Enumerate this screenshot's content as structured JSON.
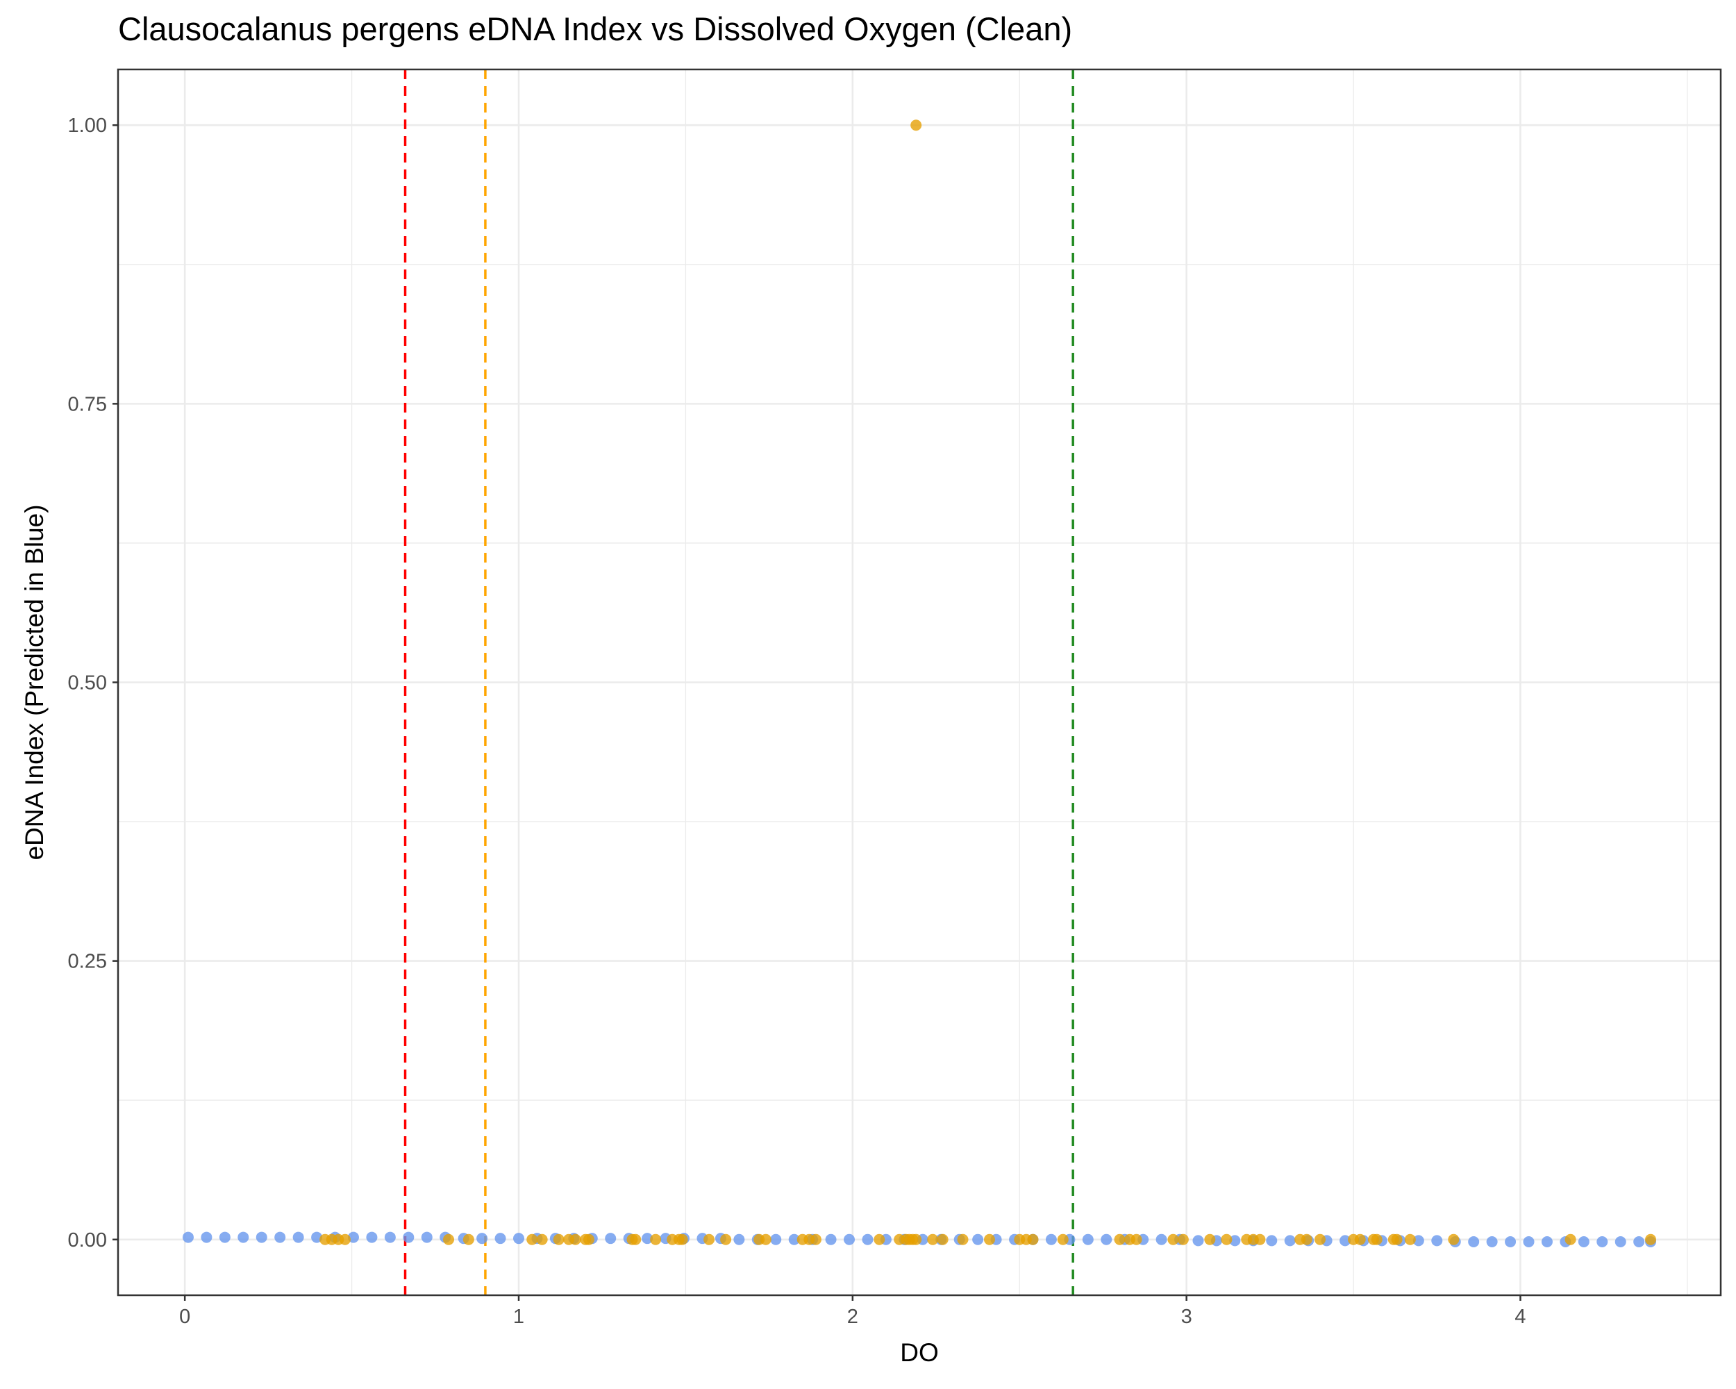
{
  "chart_data": {
    "type": "scatter",
    "title": "Clausocalanus pergens eDNA Index vs Dissolved Oxygen (Clean)",
    "xlabel": "DO",
    "ylabel": "eDNA Index (Predicted in Blue)",
    "xlim": [
      -0.2,
      4.6
    ],
    "ylim": [
      -0.05,
      1.05
    ],
    "x_ticks": [
      "0",
      "1",
      "2",
      "3",
      "4"
    ],
    "y_ticks": [
      "0.00",
      "0.25",
      "0.50",
      "0.75",
      "1.00"
    ],
    "grid": true,
    "legend": "none",
    "colors": {
      "predicted": "#6495ED",
      "observed": "#E69F00",
      "line_red": "#FF0000",
      "line_orange": "#FFA500",
      "line_green": "#228B22",
      "grid_major": "#EBEBEB",
      "panel_border": "#333333"
    },
    "vlines": [
      {
        "x": 0.66,
        "color": "#FF0000"
      },
      {
        "x": 0.9,
        "color": "#FFA500"
      },
      {
        "x": 2.66,
        "color": "#228B22"
      }
    ],
    "series": [
      {
        "color": "#6495ED",
        "x": [
          0.01,
          0.065,
          0.12,
          0.175,
          0.23,
          0.285,
          0.34,
          0.395,
          0.45,
          0.505,
          0.56,
          0.615,
          0.67,
          0.725,
          0.78,
          0.835,
          0.89,
          0.945,
          1.0,
          1.055,
          1.11,
          1.165,
          1.22,
          1.275,
          1.33,
          1.385,
          1.44,
          1.495,
          1.55,
          1.605,
          1.66,
          1.715,
          1.77,
          1.825,
          1.88,
          1.935,
          1.99,
          2.045,
          2.1,
          2.155,
          2.21,
          2.265,
          2.32,
          2.375,
          2.43,
          2.485,
          2.54,
          2.595,
          2.65,
          2.705,
          2.76,
          2.815,
          2.87,
          2.925,
          2.98,
          3.035,
          3.09,
          3.145,
          3.2,
          3.255,
          3.31,
          3.365,
          3.42,
          3.475,
          3.53,
          3.585,
          3.64,
          3.695,
          3.75,
          3.805,
          3.86,
          3.915,
          3.97,
          4.025,
          4.08,
          4.135,
          4.19,
          4.245,
          4.3,
          4.355,
          4.39
        ],
        "y": [
          0.002,
          0.002,
          0.002,
          0.002,
          0.002,
          0.002,
          0.002,
          0.002,
          0.002,
          0.002,
          0.002,
          0.002,
          0.002,
          0.002,
          0.002,
          0.001,
          0.001,
          0.001,
          0.001,
          0.001,
          0.001,
          0.001,
          0.001,
          0.001,
          0.001,
          0.001,
          0.001,
          0.001,
          0.001,
          0.001,
          0.0,
          0.0,
          0.0,
          0.0,
          0.0,
          0.0,
          0.0,
          0.0,
          0.0,
          0.0,
          0.0,
          0.0,
          0.0,
          0.0,
          0.0,
          0.0,
          0.0,
          0.0,
          0.0,
          0.0,
          0.0,
          0.0,
          0.0,
          0.0,
          0.0,
          -0.001,
          -0.001,
          -0.001,
          -0.001,
          -0.001,
          -0.001,
          -0.001,
          -0.001,
          -0.001,
          -0.001,
          -0.001,
          -0.001,
          -0.001,
          -0.001,
          -0.002,
          -0.002,
          -0.002,
          -0.002,
          -0.002,
          -0.002,
          -0.002,
          -0.002,
          -0.002,
          -0.002,
          -0.002,
          -0.002
        ]
      },
      {
        "color": "#E69F00",
        "x": [
          0.42,
          0.44,
          0.46,
          0.48,
          0.79,
          0.85,
          1.04,
          1.07,
          1.12,
          1.15,
          1.17,
          1.2,
          1.21,
          1.34,
          1.35,
          1.41,
          1.46,
          1.48,
          1.49,
          1.57,
          1.62,
          1.72,
          1.74,
          1.85,
          1.87,
          1.89,
          2.08,
          2.14,
          2.16,
          2.17,
          2.18,
          2.19,
          2.24,
          2.27,
          2.33,
          2.41,
          2.5,
          2.52,
          2.54,
          2.63,
          2.8,
          2.83,
          2.85,
          2.96,
          2.99,
          3.07,
          3.12,
          3.18,
          3.2,
          3.22,
          3.34,
          3.36,
          3.4,
          3.5,
          3.52,
          3.56,
          3.57,
          3.62,
          3.63,
          3.67,
          3.8,
          4.15,
          4.39,
          2.19
        ],
        "y": [
          0,
          0,
          0,
          0,
          0,
          0,
          0,
          0,
          0,
          0,
          0,
          0,
          0,
          0,
          0,
          0,
          0,
          0,
          0,
          0,
          0,
          0,
          0,
          0,
          0,
          0,
          0,
          0,
          0,
          0,
          0,
          0,
          0,
          0,
          0,
          0,
          0,
          0,
          0,
          0,
          0,
          0,
          0,
          0,
          0,
          0,
          0,
          0,
          0,
          0,
          0,
          0,
          0,
          0,
          0,
          0,
          0,
          0,
          0,
          0,
          0,
          0,
          0,
          1.0
        ]
      }
    ]
  }
}
